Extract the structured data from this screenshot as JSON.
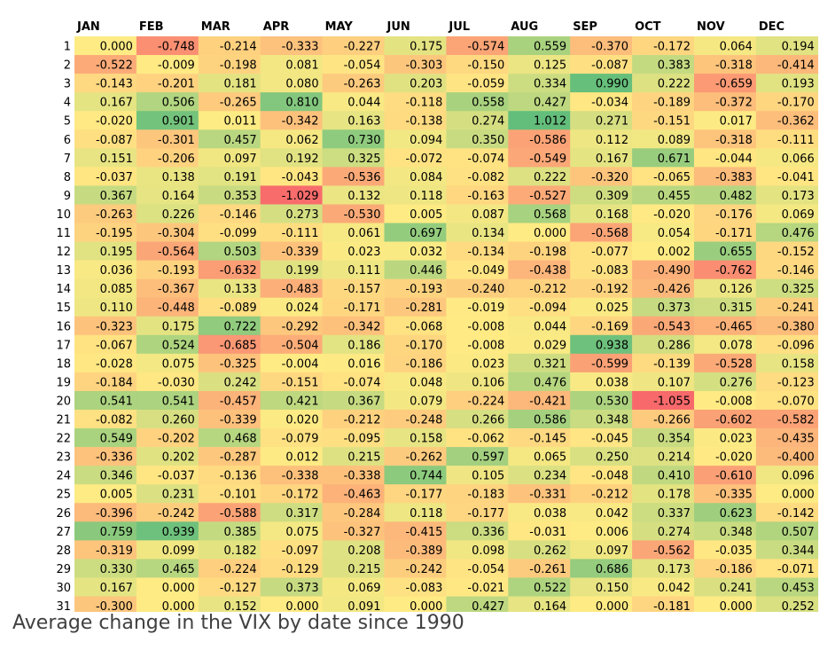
{
  "caption": "Average change in the VIX by date since 1990",
  "chart_data": {
    "type": "heatmap",
    "columns": [
      "JAN",
      "FEB",
      "MAR",
      "APR",
      "MAY",
      "JUN",
      "JUL",
      "AUG",
      "SEP",
      "OCT",
      "NOV",
      "DEC"
    ],
    "rows": [
      "1",
      "2",
      "3",
      "4",
      "5",
      "6",
      "7",
      "8",
      "9",
      "10",
      "11",
      "12",
      "13",
      "14",
      "15",
      "16",
      "17",
      "18",
      "19",
      "20",
      "21",
      "22",
      "23",
      "24",
      "25",
      "26",
      "27",
      "28",
      "29",
      "30",
      "31"
    ],
    "values": [
      [
        "0.000",
        "-0.748",
        "-0.214",
        "-0.333",
        "-0.227",
        "0.175",
        "-0.574",
        "0.559",
        "-0.370",
        "-0.172",
        "0.064",
        "0.194"
      ],
      [
        "-0.522",
        "-0.009",
        "-0.198",
        "0.081",
        "-0.054",
        "-0.303",
        "-0.150",
        "0.125",
        "-0.087",
        "0.383",
        "-0.318",
        "-0.414"
      ],
      [
        "-0.143",
        "-0.201",
        "0.181",
        "0.080",
        "-0.263",
        "0.203",
        "-0.059",
        "0.334",
        "0.990",
        "0.222",
        "-0.659",
        "0.193"
      ],
      [
        "0.167",
        "0.506",
        "-0.265",
        "0.810",
        "0.044",
        "-0.118",
        "0.558",
        "0.427",
        "-0.034",
        "-0.189",
        "-0.372",
        "-0.170"
      ],
      [
        "-0.020",
        "0.901",
        "0.011",
        "-0.342",
        "0.163",
        "-0.138",
        "0.274",
        "1.012",
        "0.271",
        "-0.151",
        "0.017",
        "-0.362"
      ],
      [
        "-0.087",
        "-0.301",
        "0.457",
        "0.062",
        "0.730",
        "0.094",
        "0.350",
        "-0.586",
        "0.112",
        "0.089",
        "-0.318",
        "-0.111"
      ],
      [
        "0.151",
        "-0.206",
        "0.097",
        "0.192",
        "0.325",
        "-0.072",
        "-0.074",
        "-0.549",
        "0.167",
        "0.671",
        "-0.044",
        "0.066"
      ],
      [
        "-0.037",
        "0.138",
        "0.191",
        "-0.043",
        "-0.536",
        "0.084",
        "-0.082",
        "0.222",
        "-0.320",
        "-0.065",
        "-0.383",
        "-0.041"
      ],
      [
        "0.367",
        "0.164",
        "0.353",
        "-1.029",
        "0.132",
        "0.118",
        "-0.163",
        "-0.527",
        "0.309",
        "0.455",
        "0.482",
        "0.173"
      ],
      [
        "-0.263",
        "0.226",
        "-0.146",
        "0.273",
        "-0.530",
        "0.005",
        "0.087",
        "0.568",
        "0.168",
        "-0.020",
        "-0.176",
        "0.069"
      ],
      [
        "-0.195",
        "-0.304",
        "-0.099",
        "-0.111",
        "0.061",
        "0.697",
        "0.134",
        "0.000",
        "-0.568",
        "0.054",
        "-0.171",
        "0.476"
      ],
      [
        "0.195",
        "-0.564",
        "0.503",
        "-0.339",
        "0.023",
        "0.032",
        "-0.134",
        "-0.198",
        "-0.077",
        "0.002",
        "0.655",
        "-0.152"
      ],
      [
        "0.036",
        "-0.193",
        "-0.632",
        "0.199",
        "0.111",
        "0.446",
        "-0.049",
        "-0.438",
        "-0.083",
        "-0.490",
        "-0.762",
        "-0.146"
      ],
      [
        "0.085",
        "-0.367",
        "0.133",
        "-0.483",
        "-0.157",
        "-0.193",
        "-0.240",
        "-0.212",
        "-0.192",
        "-0.426",
        "0.126",
        "0.325"
      ],
      [
        "0.110",
        "-0.448",
        "-0.089",
        "0.024",
        "-0.171",
        "-0.281",
        "-0.019",
        "-0.094",
        "0.025",
        "0.373",
        "0.315",
        "-0.241"
      ],
      [
        "-0.323",
        "0.175",
        "0.722",
        "-0.292",
        "-0.342",
        "-0.068",
        "-0.008",
        "0.044",
        "-0.169",
        "-0.543",
        "-0.465",
        "-0.380"
      ],
      [
        "-0.067",
        "0.524",
        "-0.685",
        "-0.504",
        "0.186",
        "-0.170",
        "-0.008",
        "0.029",
        "0.938",
        "0.286",
        "0.078",
        "-0.096"
      ],
      [
        "-0.028",
        "0.075",
        "-0.325",
        "-0.004",
        "0.016",
        "-0.186",
        "0.023",
        "0.321",
        "-0.599",
        "-0.139",
        "-0.528",
        "0.158"
      ],
      [
        "-0.184",
        "-0.030",
        "0.242",
        "-0.151",
        "-0.074",
        "0.048",
        "0.106",
        "0.476",
        "0.038",
        "0.107",
        "0.276",
        "-0.123"
      ],
      [
        "0.541",
        "0.541",
        "-0.457",
        "0.421",
        "0.367",
        "0.079",
        "-0.224",
        "-0.421",
        "0.530",
        "-1.055",
        "-0.008",
        "-0.070"
      ],
      [
        "-0.082",
        "0.260",
        "-0.339",
        "0.020",
        "-0.212",
        "-0.248",
        "0.266",
        "0.586",
        "0.348",
        "-0.266",
        "-0.602",
        "-0.582"
      ],
      [
        "0.549",
        "-0.202",
        "0.468",
        "-0.079",
        "-0.095",
        "0.158",
        "-0.062",
        "-0.145",
        "-0.045",
        "0.354",
        "0.023",
        "-0.435"
      ],
      [
        "-0.336",
        "0.202",
        "-0.287",
        "0.012",
        "0.215",
        "-0.262",
        "0.597",
        "0.065",
        "0.250",
        "0.214",
        "-0.020",
        "-0.400"
      ],
      [
        "0.346",
        "-0.037",
        "-0.136",
        "-0.338",
        "-0.338",
        "0.744",
        "0.105",
        "0.234",
        "-0.048",
        "0.410",
        "-0.610",
        "0.096"
      ],
      [
        "0.005",
        "0.231",
        "-0.101",
        "-0.172",
        "-0.463",
        "-0.177",
        "-0.183",
        "-0.331",
        "-0.212",
        "0.178",
        "-0.335",
        "0.000"
      ],
      [
        "-0.396",
        "-0.242",
        "-0.588",
        "0.317",
        "-0.284",
        "0.118",
        "-0.177",
        "0.038",
        "0.042",
        "0.337",
        "0.623",
        "-0.142"
      ],
      [
        "0.759",
        "0.939",
        "0.385",
        "0.075",
        "-0.327",
        "-0.415",
        "0.336",
        "-0.031",
        "0.006",
        "0.274",
        "0.348",
        "0.507"
      ],
      [
        "-0.319",
        "0.099",
        "0.182",
        "-0.097",
        "0.208",
        "-0.389",
        "0.098",
        "0.262",
        "0.097",
        "-0.562",
        "-0.035",
        "0.344"
      ],
      [
        "0.330",
        "0.465",
        "-0.224",
        "-0.129",
        "0.215",
        "-0.242",
        "-0.054",
        "-0.261",
        "0.686",
        "0.173",
        "-0.186",
        "-0.071"
      ],
      [
        "0.167",
        "0.000",
        "-0.127",
        "0.373",
        "0.069",
        "-0.083",
        "-0.021",
        "0.522",
        "0.150",
        "0.042",
        "0.241",
        "0.453"
      ],
      [
        "-0.300",
        "0.000",
        "0.152",
        "0.000",
        "0.091",
        "0.000",
        "0.427",
        "0.164",
        "0.000",
        "-0.181",
        "0.000",
        "0.252"
      ]
    ],
    "colors": {
      "negative": "#f8696b",
      "neutral": "#ffeb84",
      "positive": "#63be7b",
      "text": "#000000",
      "header_text": "#000000"
    }
  }
}
